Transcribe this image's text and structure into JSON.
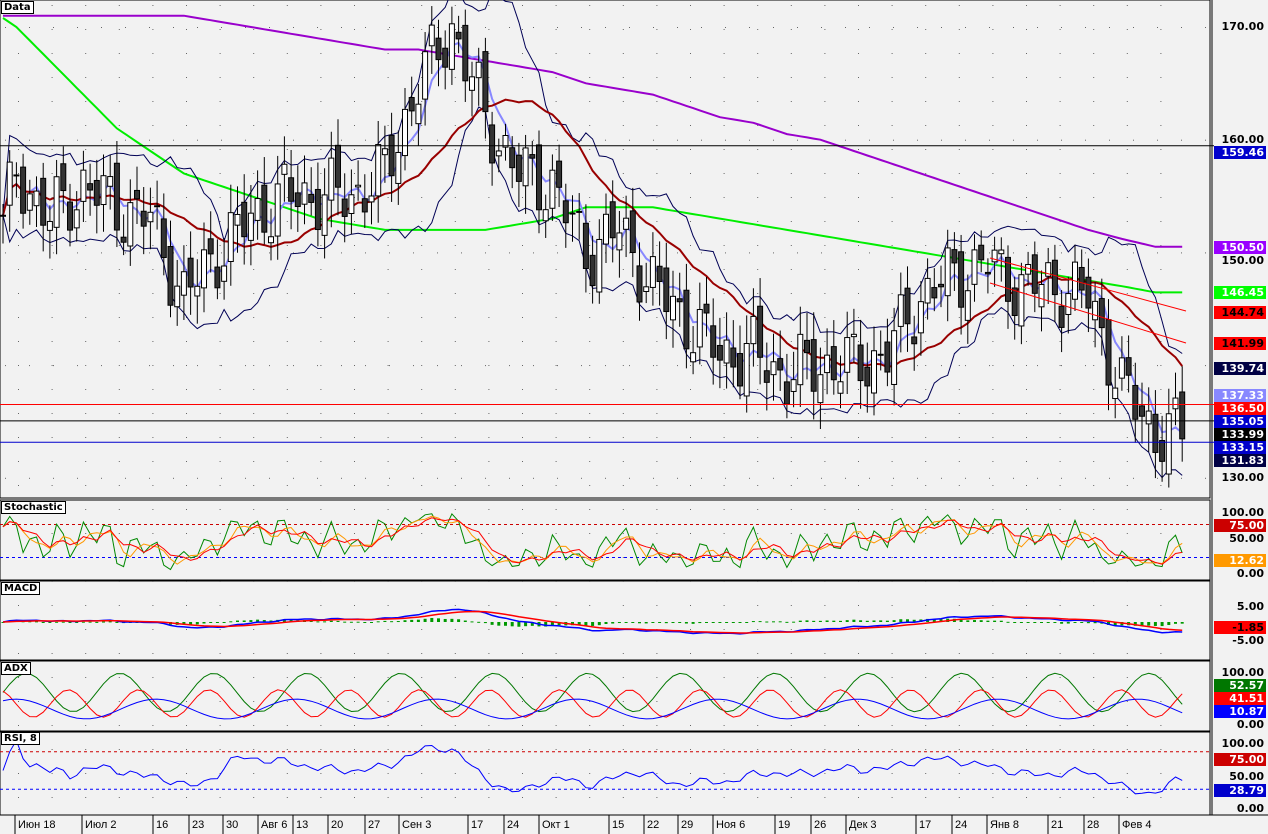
{
  "panels": {
    "price": "Data",
    "stoch": "Stochastic",
    "macd": "MACD",
    "adx": "ADX",
    "rsi": "RSI, 8"
  },
  "price_axis": [
    "170.00",
    "160.00",
    "150.00",
    "130.00"
  ],
  "price_tags": [
    {
      "v": "159.46",
      "bg": "#0000cc",
      "fg": "#fff",
      "p": 159.46
    },
    {
      "v": "150.50",
      "bg": "#9900ff",
      "fg": "#fff",
      "p": 150.5
    },
    {
      "v": "146.45",
      "bg": "#00ff00",
      "fg": "#fff",
      "p": 146.45
    },
    {
      "v": "144.74",
      "bg": "#ff0000",
      "fg": "#000",
      "p": 144.74
    },
    {
      "v": "141.99",
      "bg": "#ff0000",
      "fg": "#000",
      "p": 141.99
    },
    {
      "v": "139.74",
      "bg": "#000044",
      "fg": "#fff",
      "p": 139.74
    },
    {
      "v": "137.33",
      "bg": "#8888ff",
      "fg": "#fff",
      "p": 137.33
    },
    {
      "v": "136.50",
      "bg": "#ff0000",
      "fg": "#fff",
      "p": 136.5
    },
    {
      "v": "135.05",
      "bg": "#0000cc",
      "fg": "#fff",
      "p": 135.05
    },
    {
      "v": "133.99",
      "bg": "#000000",
      "fg": "#fff",
      "p": 133.99
    },
    {
      "v": "133.15",
      "bg": "#0000cc",
      "fg": "#fff",
      "p": 133.15
    },
    {
      "v": "131.83",
      "bg": "#000044",
      "fg": "#fff",
      "p": 131.83
    }
  ],
  "stoch_axis": [
    "100.00",
    "50.00",
    "0.00"
  ],
  "stoch_tags": [
    {
      "v": "75.00",
      "bg": "#cc0000",
      "fg": "#fff"
    },
    {
      "v": "12.62",
      "bg": "#ff9900",
      "fg": "#fff"
    }
  ],
  "macd_axis": [
    "5.00",
    "-5.00"
  ],
  "macd_tags": [
    {
      "v": "-1.85",
      "bg": "#ff0000",
      "fg": "#000"
    }
  ],
  "adx_axis": [
    "100.00",
    "0.00"
  ],
  "adx_tags": [
    {
      "v": "52.57",
      "bg": "#007700",
      "fg": "#fff"
    },
    {
      "v": "41.51",
      "bg": "#ff0000",
      "fg": "#fff"
    },
    {
      "v": "10.87",
      "bg": "#0000ff",
      "fg": "#fff"
    }
  ],
  "rsi_axis": [
    "100.00",
    "50.00",
    "0.00"
  ],
  "rsi_tags": [
    {
      "v": "75.00",
      "bg": "#cc0000",
      "fg": "#fff"
    },
    {
      "v": "28.79",
      "bg": "#0000cc",
      "fg": "#fff"
    }
  ],
  "dates": [
    "Июн 18",
    "Июл 2",
    "16",
    "23",
    "30",
    "Авг 6",
    "13",
    "20",
    "27",
    "Сен 3",
    "17",
    "24",
    "Окт 1",
    "15",
    "22",
    "29",
    "Ноя 6",
    "19",
    "26",
    "Дек 3",
    "17",
    "24",
    "Янв 8",
    "21",
    "28",
    "Фев 4"
  ],
  "chart_data": {
    "type": "candlestick",
    "weekly_close_anchors": [
      145,
      157,
      153,
      156,
      154,
      153,
      146,
      150,
      153,
      155,
      155,
      155,
      157,
      165,
      170,
      162,
      157,
      156,
      150,
      152,
      147,
      144,
      141,
      141,
      139,
      140,
      140,
      141,
      146,
      148,
      149,
      147,
      147,
      146,
      138,
      134
    ],
    "ma100_anchors": [
      172,
      170,
      167,
      164,
      161,
      159,
      157,
      156,
      155,
      154,
      153,
      152.5,
      152,
      152,
      152,
      152,
      152.5,
      153,
      154,
      154,
      154,
      153.5,
      153,
      152.5,
      152,
      151.5,
      151,
      150.5,
      150,
      149.5,
      149,
      148.5,
      148,
      147.5,
      147,
      146.45
    ],
    "ma200_anchors": [
      171,
      171,
      171,
      171,
      171,
      171,
      171,
      170.5,
      170,
      169.5,
      169,
      168.5,
      168,
      168,
      167.5,
      167,
      166.5,
      166,
      165,
      164.5,
      164,
      163,
      162,
      161.5,
      160.5,
      160,
      159,
      158,
      157,
      156,
      155,
      154,
      153,
      152,
      151.2,
      150.5
    ],
    "hlines": [
      159.46,
      136.5,
      135.05,
      133.15
    ],
    "ylim": [
      128,
      172
    ]
  }
}
